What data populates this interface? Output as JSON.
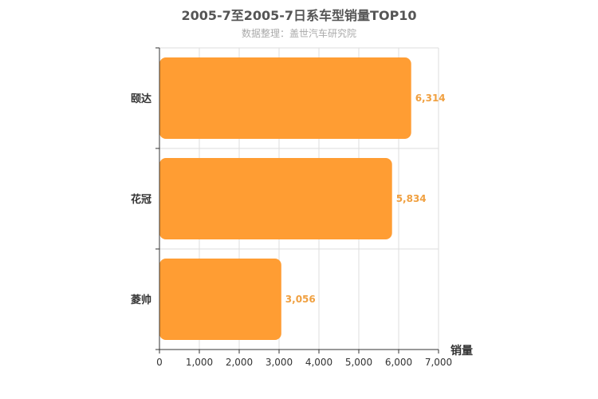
{
  "chart_data": {
    "type": "bar",
    "orientation": "horizontal",
    "title": "2005-7至2005-7日系车型销量TOP10",
    "subtitle": "数据整理：盖世汽车研究院",
    "categories": [
      "颐达",
      "花冠",
      "菱帅"
    ],
    "values": [
      6314,
      5834,
      3056
    ],
    "value_labels": [
      "6,314",
      "5,834",
      "3,056"
    ],
    "xlabel": "销量",
    "ylabel": "",
    "xlim": [
      0,
      7000
    ],
    "x_ticks": [
      0,
      1000,
      2000,
      3000,
      4000,
      5000,
      6000,
      7000
    ],
    "x_tick_labels": [
      "0",
      "1,000",
      "2,000",
      "3,000",
      "4,000",
      "5,000",
      "6,000",
      "7,000"
    ],
    "grid": true,
    "colors": {
      "bar": "#ff9d33",
      "data_label": "#f0a040",
      "grid": "#dddddd",
      "axis": "#333333"
    }
  }
}
